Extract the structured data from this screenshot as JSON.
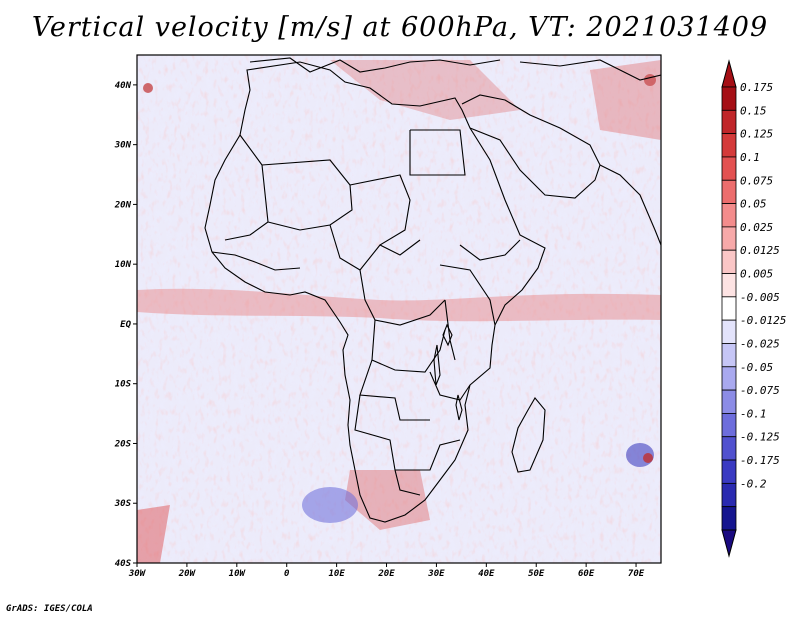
{
  "title": "Vertical velocity [m/s] at 600hPa, VT: 2021031409",
  "credit": "GrADS: IGES/COLA",
  "map": {
    "region": "Africa",
    "lat_labels": [
      "40N",
      "30N",
      "20N",
      "10N",
      "EQ",
      "10S",
      "20S",
      "30S",
      "40S"
    ],
    "lat_values": [
      40,
      30,
      20,
      10,
      0,
      -10,
      -20,
      -30,
      -40
    ],
    "lon_labels": [
      "30W",
      "20W",
      "10W",
      "0",
      "10E",
      "20E",
      "30E",
      "40E",
      "50E",
      "60E",
      "70E"
    ],
    "lon_values": [
      -30,
      -20,
      -10,
      0,
      10,
      20,
      30,
      40,
      50,
      60,
      70
    ],
    "lon_range": [
      -30,
      75
    ],
    "lat_range": [
      -40,
      45
    ]
  },
  "colorbar": {
    "labels": [
      "0.175",
      "0.15",
      "0.125",
      "0.1",
      "0.075",
      "0.05",
      "0.025",
      "0.0125",
      "0.005",
      "-0.005",
      "-0.0125",
      "-0.025",
      "-0.05",
      "-0.075",
      "-0.1",
      "-0.125",
      "-0.175",
      "-0.2"
    ],
    "colors": [
      "#a50f15",
      "#c0262a",
      "#d43a3a",
      "#e35151",
      "#ec6d6d",
      "#f38c8c",
      "#f7a9a9",
      "#fac6c6",
      "#fde3e3",
      "#ffffff",
      "#e3e3fb",
      "#c6c6f6",
      "#a9a9ef",
      "#8c8ce6",
      "#6d6ddc",
      "#5151cf",
      "#3a3ac2",
      "#2a2ab0",
      "#15158f"
    ],
    "top_arrow_color": "#a50f15",
    "bottom_arrow_color": "#1a0a80"
  },
  "field_colors": {
    "base": "#efeffb",
    "up": "#e07070",
    "down": "#7878e0"
  }
}
